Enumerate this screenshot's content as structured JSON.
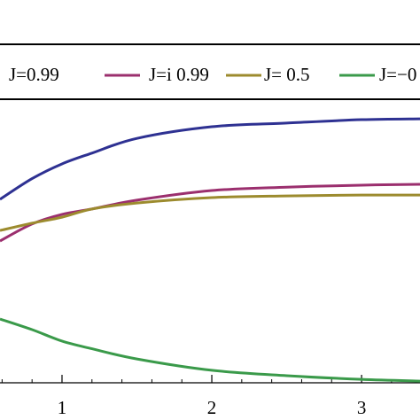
{
  "chart_data": {
    "type": "line",
    "x": [
      0.586,
      0.8,
      1,
      1.2,
      1.5,
      2,
      2.5,
      3,
      3.39
    ],
    "series": [
      {
        "name": "J=0.99",
        "color": "#2e3192",
        "values": [
          0.647,
          0.72,
          0.772,
          0.81,
          0.862,
          0.903,
          0.916,
          0.928,
          0.931
        ]
      },
      {
        "name": "J=i 0.99",
        "color": "#9b2f6e",
        "values": [
          0.5,
          0.56,
          0.594,
          0.613,
          0.644,
          0.678,
          0.69,
          0.697,
          0.7
        ]
      },
      {
        "name": "J= 0.5",
        "color": "#9c8b2e",
        "values": [
          0.537,
          0.563,
          0.584,
          0.613,
          0.634,
          0.653,
          0.659,
          0.662,
          0.662
        ]
      },
      {
        "name": "J=−0",
        "color": "#3a9a4a",
        "values": [
          0.225,
          0.1875,
          0.147,
          0.12,
          0.084,
          0.044,
          0.025,
          0.012,
          0.006
        ]
      }
    ],
    "xlim": [
      0.586,
      3.39
    ],
    "xticks": [
      1,
      2,
      3
    ],
    "ylim": [
      0,
      1
    ]
  }
}
